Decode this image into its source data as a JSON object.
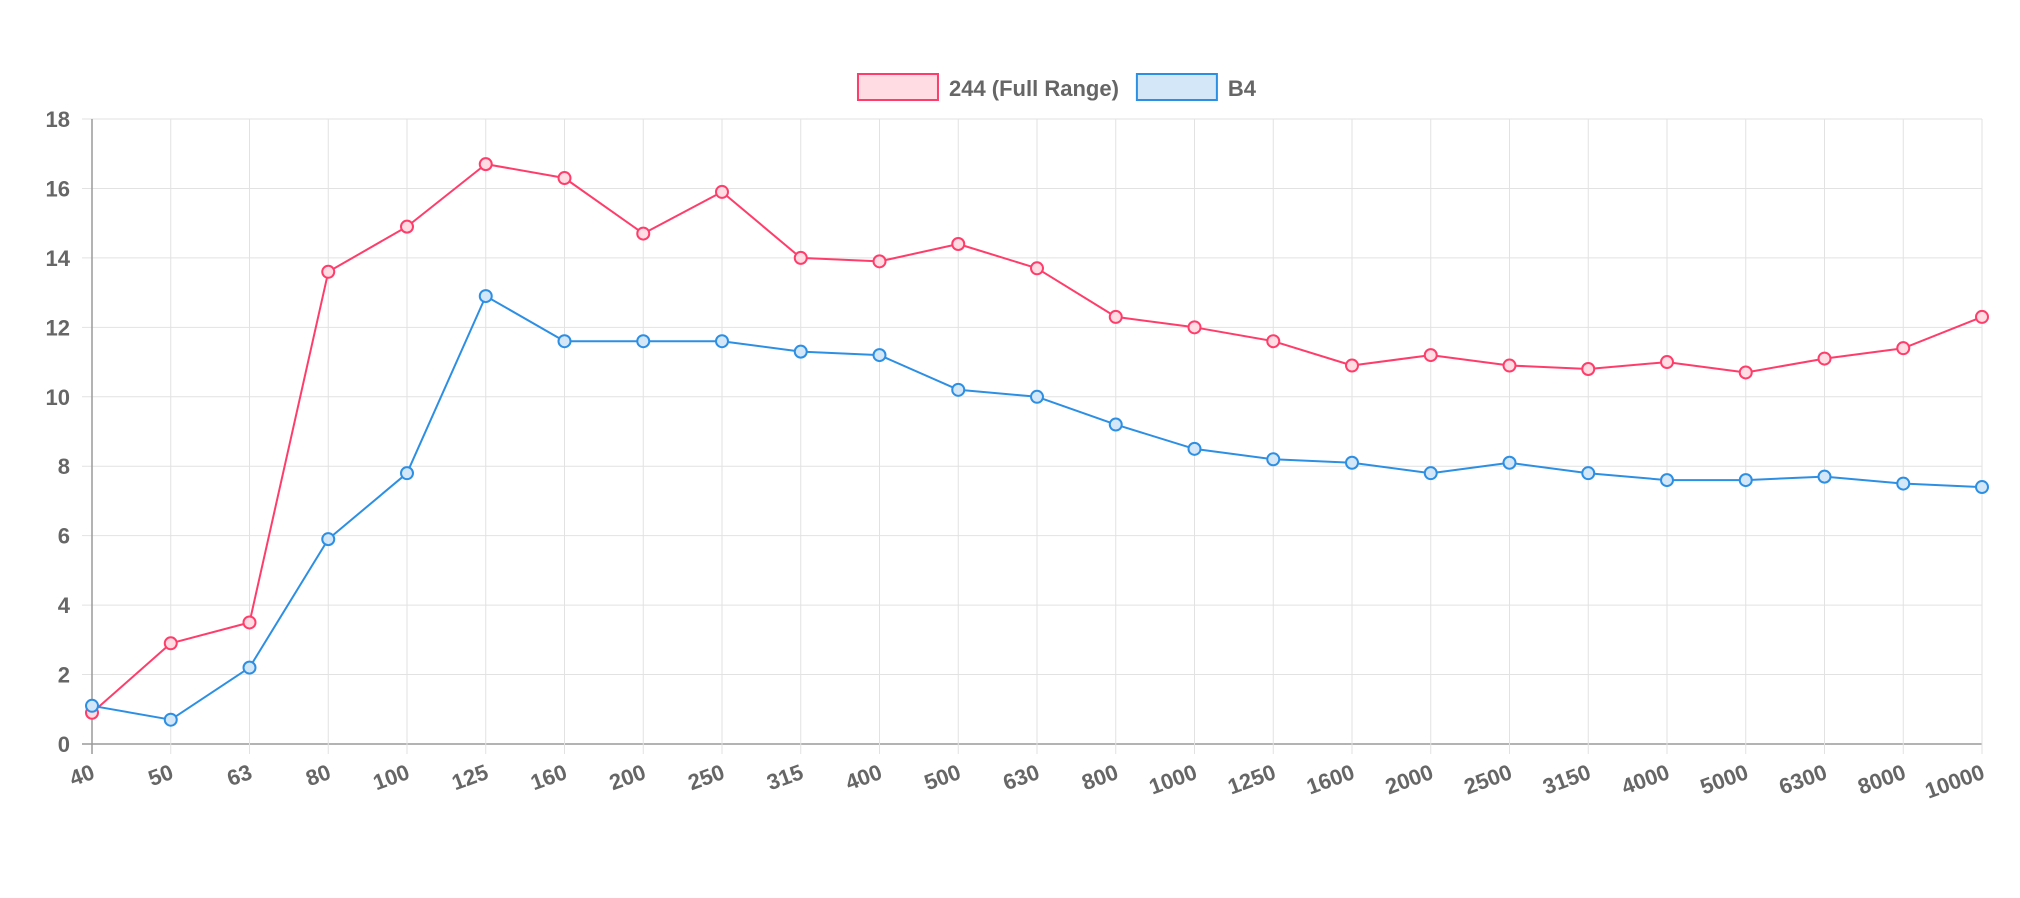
{
  "chart_data": {
    "type": "line",
    "title": "",
    "xlabel": "",
    "ylabel": "",
    "categories": [
      "40",
      "50",
      "63",
      "80",
      "100",
      "125",
      "160",
      "200",
      "250",
      "315",
      "400",
      "500",
      "630",
      "800",
      "1000",
      "1250",
      "1600",
      "2000",
      "2500",
      "3150",
      "4000",
      "5000",
      "6300",
      "8000",
      "10000"
    ],
    "y_ticks": [
      "0",
      "2",
      "4",
      "6",
      "8",
      "10",
      "12",
      "14",
      "16",
      "18"
    ],
    "ylim": [
      0,
      18
    ],
    "grid": true,
    "legend_position": "top",
    "series": [
      {
        "name": "244 (Full Range)",
        "color": "#ff3d6a",
        "fill": "#ffdbe3",
        "values": [
          0.9,
          2.9,
          3.5,
          13.6,
          14.9,
          16.7,
          16.3,
          14.7,
          15.9,
          14.0,
          13.9,
          14.4,
          13.7,
          12.3,
          12.0,
          11.6,
          10.9,
          11.2,
          10.9,
          10.8,
          11.0,
          10.7,
          11.1,
          11.4,
          12.3
        ]
      },
      {
        "name": "B4",
        "color": "#2d8fe4",
        "fill": "#d3e7f9",
        "values": [
          1.1,
          0.7,
          2.2,
          5.9,
          7.8,
          12.9,
          11.6,
          11.6,
          11.6,
          11.3,
          11.2,
          10.2,
          10.0,
          9.2,
          8.5,
          8.2,
          8.1,
          7.8,
          8.1,
          7.8,
          7.6,
          7.6,
          7.7,
          7.5,
          7.4
        ]
      }
    ]
  }
}
